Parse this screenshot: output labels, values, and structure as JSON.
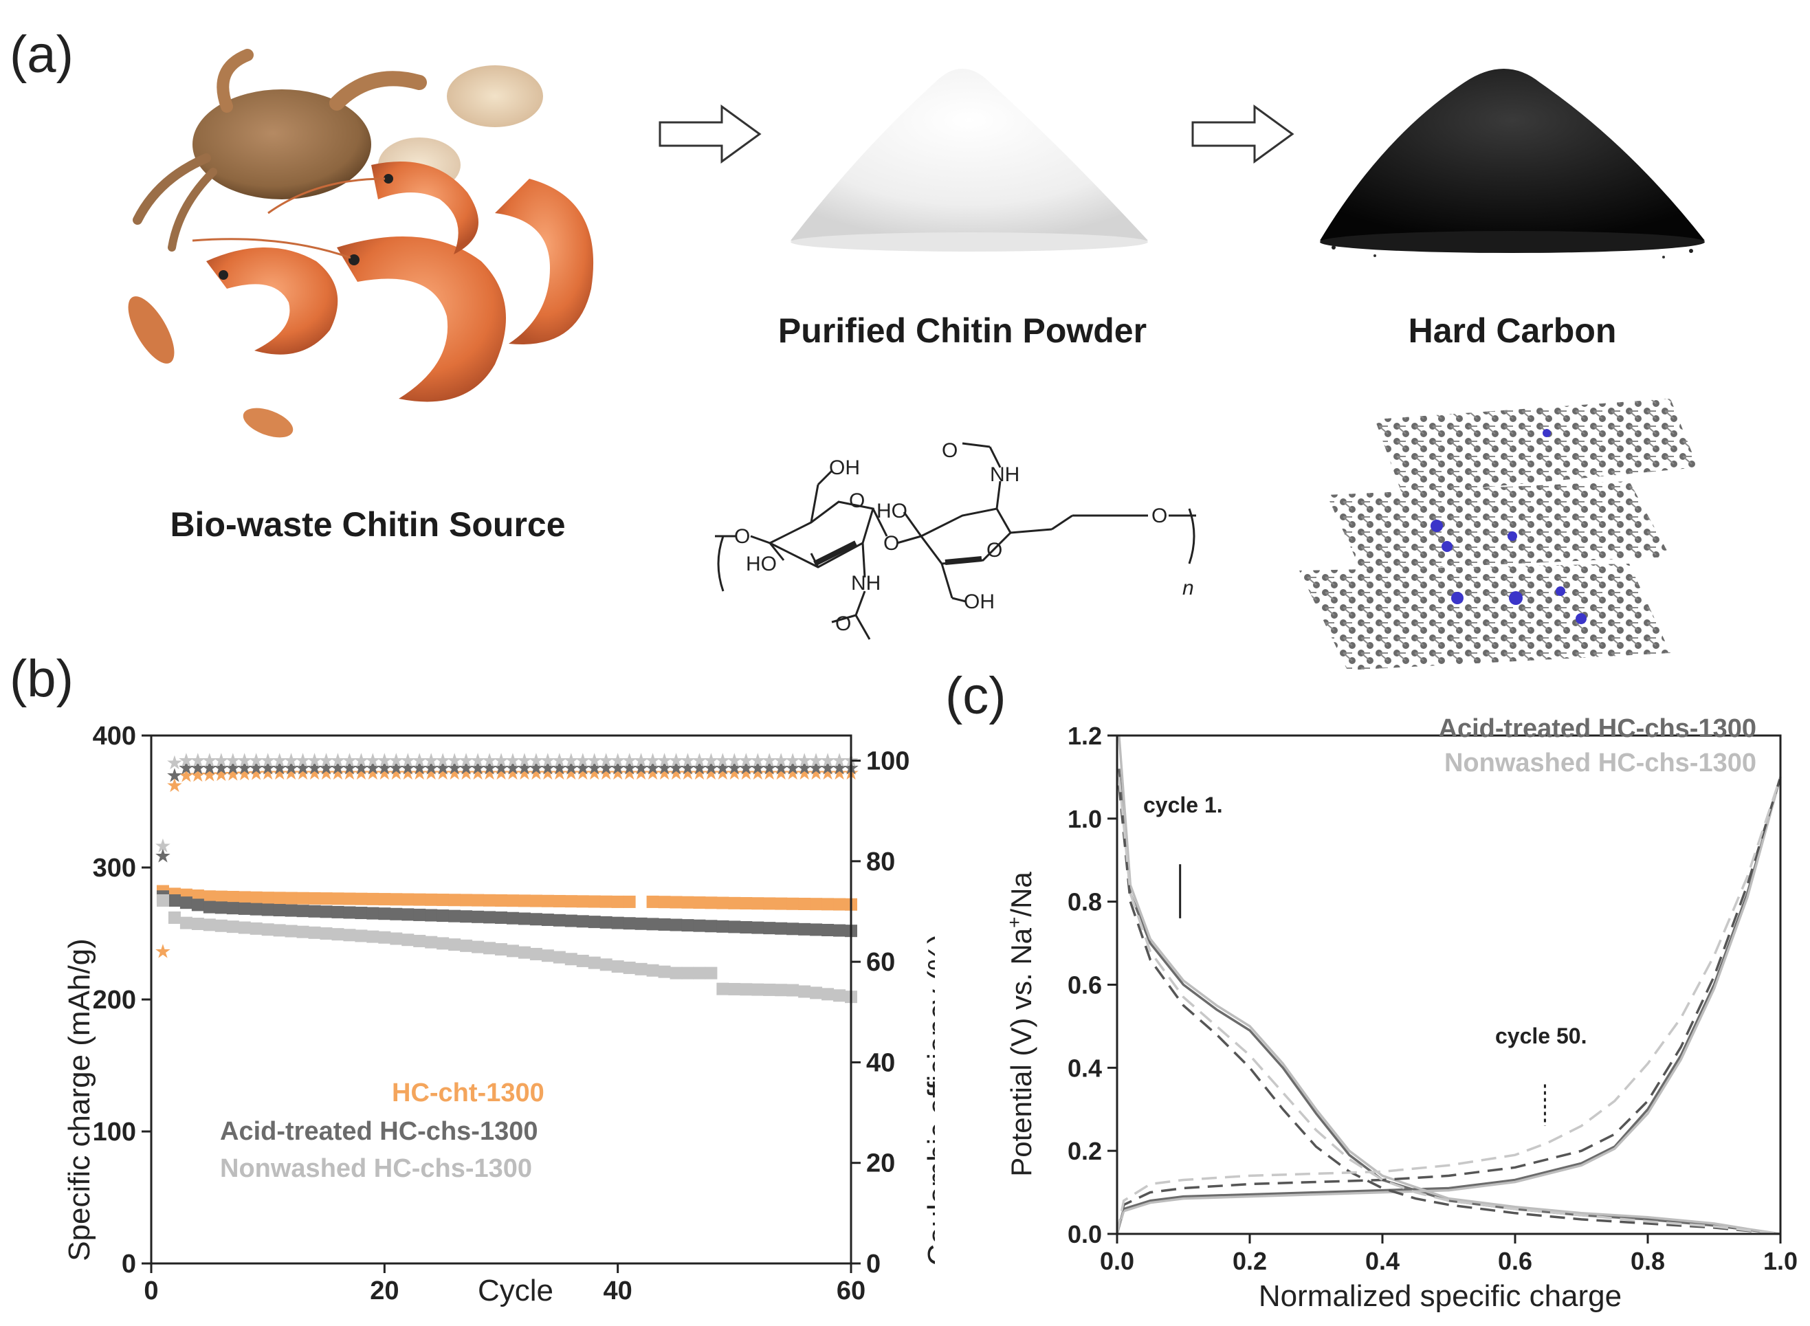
{
  "panel_a": {
    "letter": "(a)",
    "source_label": "Bio-waste Chitin Source",
    "chitin_label": "Purified Chitin Powder",
    "carbon_label": "Hard Carbon",
    "formula": {
      "oh_top": "OH",
      "nh_top": "NH",
      "o_carbonyl_top": "O",
      "ho_middle": "HO",
      "ho_left": "HO",
      "nh_bottom": "NH",
      "o_carbonyl_bottom": "O",
      "oh_bottom": "OH",
      "ring_o_left": "O",
      "ring_o_right": "O",
      "bridge_o": "O",
      "end_o_left": "O",
      "end_o_right": "O",
      "subscript_n": "n"
    }
  },
  "panel_b": {
    "letter": "(b)"
  },
  "panel_c": {
    "letter": "(c)"
  },
  "chart_data": [
    {
      "type": "scatter",
      "panel": "b",
      "xlabel": "Cycle",
      "ylabel": "Specific charge (mAh/g)",
      "y2label": "Coulombic efficiency (%)",
      "xlim": [
        0,
        60
      ],
      "ylim": [
        0,
        400
      ],
      "y2lim": [
        0,
        105
      ],
      "xticks": [
        "0",
        "20",
        "40",
        "60"
      ],
      "yticks": [
        "0",
        "100",
        "200",
        "300",
        "400"
      ],
      "y2ticks": [
        "0",
        "20",
        "40",
        "60",
        "80",
        "100"
      ],
      "legend_position": "bottom-left",
      "series": [
        {
          "name": "HC-cht-1300",
          "color": "#f4a55c",
          "capacity": [
            [
              1,
              282
            ],
            [
              2,
              280
            ],
            [
              5,
              278
            ],
            [
              10,
              277
            ],
            [
              20,
              276
            ],
            [
              30,
              275
            ],
            [
              40,
              274
            ],
            [
              41,
              274
            ],
            [
              43,
              274
            ],
            [
              50,
              273
            ],
            [
              60,
              272
            ]
          ],
          "efficiency": [
            [
              1,
              62
            ],
            [
              2,
              95
            ],
            [
              3,
              97
            ],
            [
              10,
              97.5
            ],
            [
              20,
              97.5
            ],
            [
              30,
              97.5
            ],
            [
              40,
              97.5
            ],
            [
              50,
              97.5
            ],
            [
              60,
              97.5
            ]
          ]
        },
        {
          "name": "Acid-treated HC-chs-1300",
          "color": "#6b6b6b",
          "capacity": [
            [
              1,
              278
            ],
            [
              2,
              275
            ],
            [
              5,
              270
            ],
            [
              10,
              268
            ],
            [
              20,
              265
            ],
            [
              30,
              262
            ],
            [
              40,
              258
            ],
            [
              50,
              255
            ],
            [
              60,
              252
            ]
          ],
          "efficiency": [
            [
              1,
              81
            ],
            [
              2,
              97
            ],
            [
              3,
              98.5
            ],
            [
              10,
              98.5
            ],
            [
              20,
              98.5
            ],
            [
              30,
              98.5
            ],
            [
              40,
              98.5
            ],
            [
              50,
              98.5
            ],
            [
              60,
              98.5
            ]
          ]
        },
        {
          "name": "Nonwashed HC-chs-1300",
          "color": "#c4c4c4",
          "capacity": [
            [
              1,
              275
            ],
            [
              2,
              262
            ],
            [
              3,
              258
            ],
            [
              10,
              253
            ],
            [
              20,
              247
            ],
            [
              30,
              238
            ],
            [
              35,
              232
            ],
            [
              40,
              225
            ],
            [
              45,
              220
            ],
            [
              48,
              220
            ],
            [
              49,
              208
            ],
            [
              55,
              207
            ],
            [
              60,
              202
            ]
          ],
          "efficiency": [
            [
              1,
              83
            ],
            [
              2,
              99.5
            ],
            [
              3,
              100
            ],
            [
              10,
              100
            ],
            [
              20,
              100
            ],
            [
              30,
              100
            ],
            [
              40,
              100
            ],
            [
              50,
              100
            ],
            [
              60,
              100
            ]
          ]
        }
      ]
    },
    {
      "type": "line",
      "panel": "c",
      "xlabel": "Normalized specific charge",
      "ylabel": "Potential (V) vs. Na+/Na",
      "xlim": [
        0,
        1
      ],
      "ylim": [
        0,
        1.2
      ],
      "xticks": [
        "0.0",
        "0.2",
        "0.4",
        "0.6",
        "0.8",
        "1.0"
      ],
      "yticks": [
        "0.0",
        "0.2",
        "0.4",
        "0.6",
        "0.8",
        "1.0",
        "1.2"
      ],
      "legend_position": "top-right",
      "annotations": [
        "cycle 1.",
        "cycle 50."
      ],
      "series": [
        {
          "name": "Acid-treated HC-chs-1300",
          "color": "#6b6b6b",
          "style": "solid",
          "cycle": "1",
          "kind": "discharge",
          "x": [
            0.003,
            0.02,
            0.05,
            0.1,
            0.15,
            0.2,
            0.25,
            0.3,
            0.35,
            0.4,
            0.5,
            0.6,
            0.7,
            0.8,
            0.9,
            0.95,
            1.0
          ],
          "y": [
            1.12,
            0.82,
            0.7,
            0.6,
            0.54,
            0.49,
            0.4,
            0.29,
            0.19,
            0.13,
            0.08,
            0.06,
            0.045,
            0.035,
            0.02,
            0.01,
            0.0
          ]
        },
        {
          "name": "Acid-treated HC-chs-1300",
          "color": "#6b6b6b",
          "style": "solid",
          "cycle": "1",
          "kind": "charge",
          "x": [
            0.0,
            0.01,
            0.05,
            0.1,
            0.2,
            0.3,
            0.4,
            0.5,
            0.6,
            0.7,
            0.75,
            0.8,
            0.85,
            0.9,
            0.95,
            1.0
          ],
          "y": [
            0.0,
            0.06,
            0.08,
            0.09,
            0.095,
            0.1,
            0.105,
            0.11,
            0.13,
            0.17,
            0.21,
            0.3,
            0.43,
            0.6,
            0.82,
            1.1
          ]
        },
        {
          "name": "Nonwashed HC-chs-1300",
          "color": "#bdbdbd",
          "style": "solid",
          "cycle": "1",
          "kind": "discharge",
          "x": [
            0.003,
            0.02,
            0.05,
            0.1,
            0.15,
            0.2,
            0.25,
            0.3,
            0.35,
            0.4,
            0.5,
            0.6,
            0.7,
            0.8,
            0.9,
            0.95,
            1.0
          ],
          "y": [
            1.2,
            0.84,
            0.71,
            0.61,
            0.55,
            0.5,
            0.41,
            0.3,
            0.2,
            0.14,
            0.085,
            0.065,
            0.05,
            0.04,
            0.025,
            0.012,
            0.0
          ]
        },
        {
          "name": "Nonwashed HC-chs-1300",
          "color": "#bdbdbd",
          "style": "solid",
          "cycle": "1",
          "kind": "charge",
          "x": [
            0.0,
            0.01,
            0.05,
            0.1,
            0.2,
            0.3,
            0.4,
            0.5,
            0.6,
            0.7,
            0.75,
            0.8,
            0.85,
            0.9,
            0.95,
            1.0
          ],
          "y": [
            0.0,
            0.055,
            0.075,
            0.085,
            0.09,
            0.095,
            0.1,
            0.105,
            0.125,
            0.165,
            0.205,
            0.29,
            0.42,
            0.59,
            0.81,
            1.1
          ]
        },
        {
          "name": "Acid-treated HC-chs-1300",
          "color": "#555555",
          "style": "dashed",
          "cycle": "50",
          "kind": "discharge",
          "x": [
            0.003,
            0.02,
            0.05,
            0.1,
            0.15,
            0.2,
            0.25,
            0.3,
            0.35,
            0.4,
            0.45,
            0.5,
            0.6,
            0.7,
            0.8,
            0.9,
            1.0
          ],
          "y": [
            1.08,
            0.8,
            0.66,
            0.55,
            0.48,
            0.4,
            0.3,
            0.21,
            0.15,
            0.11,
            0.085,
            0.07,
            0.05,
            0.035,
            0.025,
            0.015,
            0.0
          ]
        },
        {
          "name": "Acid-treated HC-chs-1300",
          "color": "#555555",
          "style": "dashed",
          "cycle": "50",
          "kind": "charge",
          "x": [
            0.0,
            0.01,
            0.05,
            0.1,
            0.2,
            0.3,
            0.4,
            0.5,
            0.6,
            0.7,
            0.75,
            0.8,
            0.85,
            0.9,
            0.95,
            1.0
          ],
          "y": [
            0.0,
            0.07,
            0.1,
            0.11,
            0.12,
            0.125,
            0.13,
            0.14,
            0.16,
            0.2,
            0.24,
            0.32,
            0.45,
            0.62,
            0.84,
            1.1
          ]
        },
        {
          "name": "Nonwashed HC-chs-1300",
          "color": "#c8c8c8",
          "style": "dashed",
          "cycle": "50",
          "kind": "discharge",
          "x": [
            0.003,
            0.02,
            0.05,
            0.1,
            0.15,
            0.2,
            0.25,
            0.3,
            0.35,
            0.4,
            0.45,
            0.5,
            0.6,
            0.7,
            0.8,
            0.9,
            1.0
          ],
          "y": [
            1.1,
            0.82,
            0.68,
            0.57,
            0.5,
            0.43,
            0.34,
            0.25,
            0.18,
            0.13,
            0.1,
            0.08,
            0.06,
            0.045,
            0.03,
            0.018,
            0.0
          ]
        },
        {
          "name": "Nonwashed HC-chs-1300",
          "color": "#c8c8c8",
          "style": "dashed",
          "cycle": "50",
          "kind": "charge",
          "x": [
            0.0,
            0.01,
            0.05,
            0.1,
            0.2,
            0.3,
            0.4,
            0.5,
            0.6,
            0.65,
            0.7,
            0.75,
            0.8,
            0.85,
            0.9,
            0.95,
            1.0
          ],
          "y": [
            0.0,
            0.08,
            0.12,
            0.13,
            0.14,
            0.145,
            0.15,
            0.165,
            0.19,
            0.22,
            0.26,
            0.32,
            0.41,
            0.52,
            0.67,
            0.86,
            1.1
          ]
        }
      ]
    }
  ],
  "legend_b": [
    {
      "text": "HC-cht-1300",
      "color": "#f4a55c"
    },
    {
      "text": "Acid-treated HC-chs-1300",
      "color": "#6b6b6b"
    },
    {
      "text": "Nonwashed HC-chs-1300",
      "color": "#bdbdbd"
    }
  ],
  "legend_c": [
    {
      "text": "Acid-treated HC-chs-1300",
      "color": "#6b6b6b"
    },
    {
      "text": "Nonwashed HC-chs-1300",
      "color": "#bdbdbd"
    }
  ]
}
